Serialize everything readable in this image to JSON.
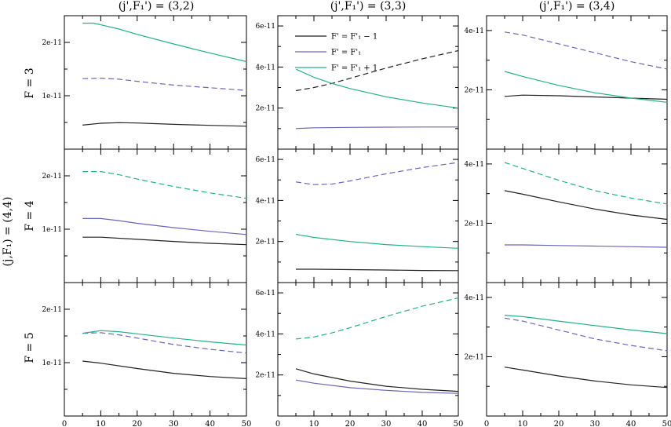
{
  "figure": {
    "column_titles": [
      "(j',F₁') = (3,2)",
      "(j',F₁') = (3,3)",
      "(j',F₁') = (3,4)"
    ],
    "row_titles": [
      "F = 3",
      "F = 4",
      "F = 5"
    ],
    "side_title": "(j,F₁) = (4,4)"
  },
  "colors": {
    "black": "#222222",
    "blue": "#6a66b8",
    "green": "#1fb48c",
    "axis": "#000000"
  },
  "chart_data": [
    {
      "type": "line",
      "row": 0,
      "col": 0,
      "xlim": [
        0,
        50
      ],
      "ylim": [
        0,
        2.5e-11
      ],
      "yticks": [
        1e-11,
        2e-11
      ],
      "ytick_labels": [
        "1e-11",
        "2e-11"
      ],
      "xticks": [
        0,
        10,
        20,
        30,
        40,
        50
      ],
      "xtick_labels": [
        "0",
        "10",
        "20",
        "30",
        "40",
        "50"
      ],
      "show_xticklabels": false,
      "series": [
        {
          "color": "black",
          "dash": "solid",
          "x": [
            5,
            10,
            15,
            20,
            30,
            40,
            50
          ],
          "y": [
            4.5e-12,
            4.85e-12,
            4.95e-12,
            4.9e-12,
            4.65e-12,
            4.45e-12,
            4.3e-12
          ]
        },
        {
          "color": "blue",
          "dash": "dashed",
          "x": [
            5,
            10,
            15,
            20,
            30,
            40,
            50
          ],
          "y": [
            1.32e-11,
            1.33e-11,
            1.31e-11,
            1.27e-11,
            1.2e-11,
            1.15e-11,
            1.1e-11
          ]
        },
        {
          "color": "green",
          "dash": "solid",
          "x": [
            5,
            8,
            10,
            15,
            20,
            30,
            40,
            50
          ],
          "y": [
            2.36e-11,
            2.36e-11,
            2.33e-11,
            2.25e-11,
            2.15e-11,
            1.97e-11,
            1.8e-11,
            1.64e-11
          ]
        }
      ]
    },
    {
      "type": "line",
      "row": 0,
      "col": 1,
      "xlim": [
        0,
        50
      ],
      "ylim": [
        0,
        6.5e-11
      ],
      "yticks": [
        2e-11,
        4e-11,
        6e-11
      ],
      "ytick_labels": [
        "2e-11",
        "4e-11",
        "6e-11"
      ],
      "xticks": [
        0,
        10,
        20,
        30,
        40,
        50
      ],
      "xtick_labels": [
        "0",
        "10",
        "20",
        "30",
        "40",
        "50"
      ],
      "show_xticklabels": false,
      "legend": [
        "F' = F'₁ − 1",
        "F' = F'₁",
        "F' = F'₁ + 1"
      ],
      "series": [
        {
          "color": "black",
          "dash": "dashed",
          "x": [
            5,
            10,
            15,
            20,
            30,
            40,
            50
          ],
          "y": [
            2.85e-11,
            3e-11,
            3.2e-11,
            3.45e-11,
            3.95e-11,
            4.4e-11,
            4.8e-11
          ]
        },
        {
          "color": "blue",
          "dash": "solid",
          "x": [
            5,
            10,
            20,
            30,
            40,
            50
          ],
          "y": [
            1e-11,
            1.04e-11,
            1.06e-11,
            1.07e-11,
            1.08e-11,
            1.08e-11
          ]
        },
        {
          "color": "green",
          "dash": "solid",
          "x": [
            5,
            10,
            15,
            20,
            30,
            40,
            50
          ],
          "y": [
            3.9e-11,
            3.5e-11,
            3.2e-11,
            2.95e-11,
            2.55e-11,
            2.25e-11,
            2e-11
          ]
        }
      ]
    },
    {
      "type": "line",
      "row": 0,
      "col": 2,
      "xlim": [
        0,
        50
      ],
      "ylim": [
        0,
        4.5e-11
      ],
      "yticks": [
        2e-11,
        4e-11
      ],
      "ytick_labels": [
        "2e-11",
        "4e-11"
      ],
      "xticks": [
        0,
        10,
        20,
        30,
        40,
        50
      ],
      "xtick_labels": [
        "0",
        "10",
        "20",
        "30",
        "40",
        "50"
      ],
      "show_xticklabels": false,
      "series": [
        {
          "color": "black",
          "dash": "solid",
          "x": [
            5,
            10,
            20,
            30,
            40,
            50
          ],
          "y": [
            1.78e-11,
            1.82e-11,
            1.8e-11,
            1.76e-11,
            1.72e-11,
            1.68e-11
          ]
        },
        {
          "color": "blue",
          "dash": "dashed",
          "x": [
            5,
            10,
            20,
            30,
            40,
            50
          ],
          "y": [
            3.95e-11,
            3.85e-11,
            3.55e-11,
            3.25e-11,
            2.95e-11,
            2.7e-11
          ]
        },
        {
          "color": "green",
          "dash": "solid",
          "x": [
            5,
            10,
            20,
            30,
            40,
            50
          ],
          "y": [
            2.62e-11,
            2.45e-11,
            2.15e-11,
            1.9e-11,
            1.72e-11,
            1.58e-11
          ]
        }
      ]
    },
    {
      "type": "line",
      "row": 1,
      "col": 0,
      "xlim": [
        0,
        50
      ],
      "ylim": [
        0,
        2.5e-11
      ],
      "yticks": [
        1e-11,
        2e-11
      ],
      "ytick_labels": [
        "1e-11",
        "2e-11"
      ],
      "xticks": [
        0,
        10,
        20,
        30,
        40,
        50
      ],
      "xtick_labels": [
        "0",
        "10",
        "20",
        "30",
        "40",
        "50"
      ],
      "show_xticklabels": false,
      "series": [
        {
          "color": "black",
          "dash": "solid",
          "x": [
            5,
            10,
            20,
            30,
            40,
            50
          ],
          "y": [
            8.5e-12,
            8.5e-12,
            8.1e-12,
            7.7e-12,
            7.35e-12,
            7.1e-12
          ]
        },
        {
          "color": "blue",
          "dash": "solid",
          "x": [
            5,
            10,
            15,
            20,
            30,
            40,
            50
          ],
          "y": [
            1.2e-11,
            1.2e-11,
            1.16e-11,
            1.11e-11,
            1.03e-11,
            9.6e-12,
            9e-12
          ]
        },
        {
          "color": "green",
          "dash": "dashed",
          "x": [
            5,
            10,
            15,
            20,
            30,
            40,
            50
          ],
          "y": [
            2.08e-11,
            2.08e-11,
            2.02e-11,
            1.94e-11,
            1.8e-11,
            1.68e-11,
            1.58e-11
          ]
        }
      ]
    },
    {
      "type": "line",
      "row": 1,
      "col": 1,
      "xlim": [
        0,
        50
      ],
      "ylim": [
        0,
        6.5e-11
      ],
      "yticks": [
        2e-11,
        4e-11,
        6e-11
      ],
      "ytick_labels": [
        "2e-11",
        "4e-11",
        "6e-11"
      ],
      "xticks": [
        0,
        10,
        20,
        30,
        40,
        50
      ],
      "xtick_labels": [
        "0",
        "10",
        "20",
        "30",
        "40",
        "50"
      ],
      "show_xticklabels": false,
      "series": [
        {
          "color": "black",
          "dash": "solid",
          "x": [
            5,
            10,
            20,
            30,
            40,
            50
          ],
          "y": [
            6.5e-12,
            6.5e-12,
            6.3e-12,
            6.1e-12,
            5.9e-12,
            5.8e-12
          ]
        },
        {
          "color": "blue",
          "dash": "dashed",
          "x": [
            5,
            10,
            15,
            20,
            30,
            40,
            50
          ],
          "y": [
            4.9e-11,
            4.77e-11,
            4.8e-11,
            4.95e-11,
            5.3e-11,
            5.6e-11,
            5.85e-11
          ]
        },
        {
          "color": "green",
          "dash": "solid",
          "x": [
            5,
            10,
            20,
            30,
            40,
            50
          ],
          "y": [
            2.35e-11,
            2.2e-11,
            2e-11,
            1.85e-11,
            1.75e-11,
            1.67e-11
          ]
        }
      ]
    },
    {
      "type": "line",
      "row": 1,
      "col": 2,
      "xlim": [
        0,
        50
      ],
      "ylim": [
        0,
        4.5e-11
      ],
      "yticks": [
        2e-11,
        4e-11
      ],
      "ytick_labels": [
        "2e-11",
        "4e-11"
      ],
      "xticks": [
        0,
        10,
        20,
        30,
        40,
        50
      ],
      "xtick_labels": [
        "0",
        "10",
        "20",
        "30",
        "40",
        "50"
      ],
      "show_xticklabels": false,
      "series": [
        {
          "color": "black",
          "dash": "solid",
          "x": [
            5,
            10,
            20,
            30,
            40,
            50
          ],
          "y": [
            3.1e-11,
            2.98e-11,
            2.72e-11,
            2.48e-11,
            2.28e-11,
            2.13e-11
          ]
        },
        {
          "color": "blue",
          "dash": "solid",
          "x": [
            5,
            10,
            20,
            30,
            40,
            50
          ],
          "y": [
            1.27e-11,
            1.27e-11,
            1.25e-11,
            1.23e-11,
            1.21e-11,
            1.19e-11
          ]
        },
        {
          "color": "green",
          "dash": "dashed",
          "x": [
            5,
            10,
            20,
            30,
            40,
            50
          ],
          "y": [
            4.05e-11,
            3.85e-11,
            3.45e-11,
            3.1e-11,
            2.85e-11,
            2.65e-11
          ]
        }
      ]
    },
    {
      "type": "line",
      "row": 2,
      "col": 0,
      "xlim": [
        0,
        50
      ],
      "ylim": [
        0,
        2.5e-11
      ],
      "yticks": [
        1e-11,
        2e-11
      ],
      "ytick_labels": [
        "1e-11",
        "2e-11"
      ],
      "xticks": [
        0,
        10,
        20,
        30,
        40,
        50
      ],
      "xtick_labels": [
        "0",
        "10",
        "20",
        "30",
        "40",
        "50"
      ],
      "show_xticklabels": true,
      "series": [
        {
          "color": "black",
          "dash": "solid",
          "x": [
            5,
            10,
            20,
            30,
            40,
            50
          ],
          "y": [
            1.03e-11,
            9.9e-12,
            8.9e-12,
            8e-12,
            7.4e-12,
            7e-12
          ]
        },
        {
          "color": "blue",
          "dash": "dashed",
          "x": [
            5,
            10,
            15,
            20,
            30,
            40,
            50
          ],
          "y": [
            1.55e-11,
            1.56e-11,
            1.52e-11,
            1.46e-11,
            1.34e-11,
            1.25e-11,
            1.18e-11
          ]
        },
        {
          "color": "green",
          "dash": "solid",
          "x": [
            5,
            10,
            15,
            20,
            30,
            40,
            50
          ],
          "y": [
            1.55e-11,
            1.6e-11,
            1.58e-11,
            1.54e-11,
            1.46e-11,
            1.39e-11,
            1.33e-11
          ]
        }
      ]
    },
    {
      "type": "line",
      "row": 2,
      "col": 1,
      "xlim": [
        0,
        50
      ],
      "ylim": [
        0,
        6.5e-11
      ],
      "yticks": [
        2e-11,
        4e-11,
        6e-11
      ],
      "ytick_labels": [
        "2e-11",
        "4e-11",
        "6e-11"
      ],
      "xticks": [
        0,
        10,
        20,
        30,
        40,
        50
      ],
      "xtick_labels": [
        "0",
        "10",
        "20",
        "30",
        "40",
        "50"
      ],
      "show_xticklabels": true,
      "series": [
        {
          "color": "black",
          "dash": "solid",
          "x": [
            5,
            10,
            20,
            30,
            40,
            50
          ],
          "y": [
            2.3e-11,
            2.05e-11,
            1.7e-11,
            1.45e-11,
            1.3e-11,
            1.2e-11
          ]
        },
        {
          "color": "blue",
          "dash": "solid",
          "x": [
            5,
            10,
            20,
            30,
            40,
            50
          ],
          "y": [
            1.75e-11,
            1.6e-11,
            1.38e-11,
            1.25e-11,
            1.15e-11,
            1.1e-11
          ]
        },
        {
          "color": "green",
          "dash": "dashed",
          "x": [
            5,
            10,
            15,
            20,
            30,
            40,
            50
          ],
          "y": [
            3.75e-11,
            3.85e-11,
            4.05e-11,
            4.3e-11,
            4.85e-11,
            5.35e-11,
            5.75e-11
          ]
        }
      ]
    },
    {
      "type": "line",
      "row": 2,
      "col": 2,
      "xlim": [
        0,
        50
      ],
      "ylim": [
        0,
        4.5e-11
      ],
      "yticks": [
        2e-11,
        4e-11
      ],
      "ytick_labels": [
        "2e-11",
        "4e-11"
      ],
      "xticks": [
        0,
        10,
        20,
        30,
        40,
        50
      ],
      "xtick_labels": [
        "0",
        "10",
        "20",
        "30",
        "40",
        "50"
      ],
      "show_xticklabels": true,
      "series": [
        {
          "color": "black",
          "dash": "solid",
          "x": [
            5,
            10,
            20,
            30,
            40,
            50
          ],
          "y": [
            1.65e-11,
            1.55e-11,
            1.35e-11,
            1.18e-11,
            1.05e-11,
            9.6e-12
          ]
        },
        {
          "color": "blue",
          "dash": "dashed",
          "x": [
            5,
            10,
            20,
            30,
            40,
            50
          ],
          "y": [
            3.3e-11,
            3.2e-11,
            2.9e-11,
            2.6e-11,
            2.38e-11,
            2.2e-11
          ]
        },
        {
          "color": "green",
          "dash": "solid",
          "x": [
            5,
            10,
            20,
            30,
            40,
            50
          ],
          "y": [
            3.4e-11,
            3.35e-11,
            3.2e-11,
            3.05e-11,
            2.9e-11,
            2.78e-11
          ]
        }
      ]
    }
  ]
}
